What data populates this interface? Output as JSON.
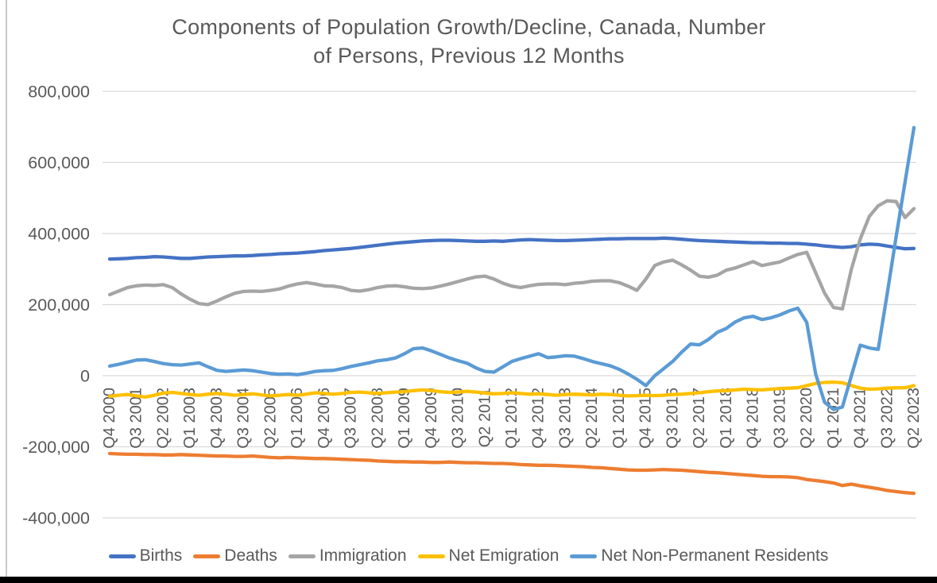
{
  "page": {
    "background": "#FFFFFF",
    "left_border_color": "#C9C9C9",
    "bottom_bar_color": "#000000"
  },
  "chart_data": {
    "type": "line",
    "title": "Components of Population Growth/Decline, Canada, Number of Persons, Previous 12 Months",
    "title_lines": [
      "Components of Population Growth/Decline, Canada, Number",
      "of Persons, Previous 12 Months"
    ],
    "title_color": "#595959",
    "axis_text_color": "#595959",
    "gridline_color": "#D9D9D9",
    "grid": "horizontal-only",
    "legend_position": "bottom",
    "y_axis": {
      "min": -400000,
      "max": 800000,
      "tick_interval": 200000,
      "tick_labels": [
        "800,000",
        "600,000",
        "400,000",
        "200,000",
        "0",
        "-200,000",
        "-400,000"
      ]
    },
    "x_axis": {
      "label_rotation_degrees": 90,
      "label_every_n_points": 3,
      "points_per_series": 91,
      "tick_labels": [
        "Q4 2000",
        "Q3 2001",
        "Q2 2002",
        "Q1 2003",
        "Q4 2003",
        "Q3 2004",
        "Q2 2005",
        "Q1 2006",
        "Q4 2006",
        "Q3 2007",
        "Q2 2008",
        "Q1 2009",
        "Q4 2009",
        "Q3 2010",
        "Q2 2011",
        "Q1 2012",
        "Q4 2012",
        "Q3 2013",
        "Q2 2014",
        "Q1 2015",
        "Q4 2015",
        "Q3 2016",
        "Q2 2017",
        "Q1 2018",
        "Q4 2018",
        "Q3 2019",
        "Q2 2020",
        "Q1 2021",
        "Q4 2021",
        "Q3 2022",
        "Q2 2023"
      ]
    },
    "values_unit": "persons, stored in thousands",
    "series": [
      {
        "name": "Births",
        "color": "#4472C4",
        "values_in_thousands": [
          328,
          329,
          330,
          332,
          333,
          335,
          334,
          332,
          330,
          330,
          332,
          334,
          335,
          336,
          337,
          337,
          338,
          340,
          341,
          343,
          344,
          345,
          347,
          349,
          352,
          354,
          356,
          358,
          361,
          364,
          367,
          370,
          373,
          375,
          377,
          379,
          380,
          381,
          381,
          380,
          379,
          378,
          378,
          379,
          378,
          380,
          382,
          383,
          382,
          381,
          380,
          380,
          381,
          382,
          383,
          384,
          385,
          385,
          386,
          386,
          386,
          386,
          387,
          386,
          384,
          382,
          380,
          379,
          378,
          377,
          376,
          375,
          374,
          374,
          373,
          373,
          372,
          372,
          370,
          368,
          365,
          363,
          361,
          363,
          368,
          370,
          369,
          365,
          361,
          357,
          358
        ]
      },
      {
        "name": "Deaths",
        "color": "#ED7D31",
        "values_in_thousands": [
          -219,
          -220,
          -221,
          -221,
          -222,
          -222,
          -223,
          -223,
          -222,
          -223,
          -224,
          -225,
          -226,
          -226,
          -227,
          -227,
          -226,
          -228,
          -230,
          -231,
          -230,
          -231,
          -232,
          -233,
          -233,
          -234,
          -235,
          -236,
          -237,
          -238,
          -240,
          -241,
          -242,
          -242,
          -243,
          -243,
          -244,
          -244,
          -243,
          -244,
          -245,
          -245,
          -246,
          -247,
          -247,
          -248,
          -250,
          -251,
          -252,
          -252,
          -253,
          -254,
          -255,
          -256,
          -258,
          -259,
          -261,
          -263,
          -265,
          -266,
          -266,
          -265,
          -264,
          -265,
          -266,
          -268,
          -270,
          -272,
          -273,
          -275,
          -277,
          -279,
          -281,
          -283,
          -284,
          -284,
          -285,
          -287,
          -292,
          -295,
          -298,
          -302,
          -309,
          -305,
          -310,
          -314,
          -318,
          -323,
          -326,
          -329,
          -331
        ]
      },
      {
        "name": "Immigration",
        "color": "#A5A5A5",
        "values_in_thousands": [
          228,
          238,
          248,
          253,
          255,
          254,
          256,
          248,
          230,
          215,
          203,
          200,
          210,
          222,
          232,
          237,
          238,
          237,
          240,
          244,
          252,
          258,
          262,
          258,
          253,
          252,
          248,
          240,
          238,
          242,
          248,
          252,
          253,
          250,
          246,
          245,
          247,
          252,
          258,
          265,
          272,
          278,
          280,
          272,
          260,
          252,
          248,
          253,
          257,
          258,
          258,
          256,
          260,
          262,
          266,
          267,
          267,
          262,
          252,
          240,
          272,
          310,
          320,
          325,
          312,
          297,
          280,
          277,
          283,
          297,
          303,
          312,
          321,
          310,
          315,
          320,
          331,
          341,
          347,
          290,
          232,
          192,
          188,
          300,
          385,
          448,
          478,
          492,
          490,
          445,
          470
        ]
      },
      {
        "name": "Net Emigration",
        "color": "#FFC000",
        "values_in_thousands": [
          -58,
          -55,
          -53,
          -57,
          -60,
          -55,
          -49,
          -47,
          -50,
          -53,
          -55,
          -52,
          -50,
          -52,
          -55,
          -53,
          -51,
          -54,
          -57,
          -55,
          -53,
          -55,
          -52,
          -48,
          -50,
          -52,
          -50,
          -47,
          -46,
          -48,
          -50,
          -48,
          -46,
          -45,
          -42,
          -40,
          -42,
          -45,
          -47,
          -46,
          -44,
          -46,
          -49,
          -51,
          -50,
          -48,
          -50,
          -52,
          -51,
          -53,
          -55,
          -53,
          -52,
          -53,
          -54,
          -52,
          -53,
          -55,
          -57,
          -56,
          -55,
          -56,
          -55,
          -53,
          -52,
          -50,
          -48,
          -45,
          -43,
          -42,
          -40,
          -38,
          -39,
          -40,
          -38,
          -36,
          -35,
          -34,
          -28,
          -22,
          -19,
          -18,
          -20,
          -28,
          -35,
          -38,
          -37,
          -35,
          -34,
          -34,
          -28
        ]
      },
      {
        "name": "Net Non-Permanent Residents",
        "color": "#5B9BD5",
        "values_in_thousands": [
          27,
          32,
          38,
          44,
          45,
          40,
          34,
          31,
          30,
          33,
          36,
          25,
          15,
          12,
          14,
          16,
          14,
          10,
          6,
          4,
          5,
          3,
          7,
          12,
          14,
          15,
          20,
          26,
          31,
          36,
          42,
          45,
          50,
          62,
          76,
          78,
          70,
          60,
          50,
          42,
          35,
          22,
          12,
          10,
          25,
          40,
          48,
          55,
          62,
          51,
          53,
          56,
          55,
          48,
          40,
          34,
          28,
          18,
          5,
          -10,
          -28,
          0,
          20,
          40,
          66,
          89,
          87,
          102,
          122,
          133,
          151,
          163,
          167,
          158,
          163,
          171,
          182,
          190,
          150,
          5,
          -75,
          -95,
          -88,
          0,
          86,
          78,
          74,
          230,
          390,
          545,
          698
        ]
      }
    ]
  }
}
